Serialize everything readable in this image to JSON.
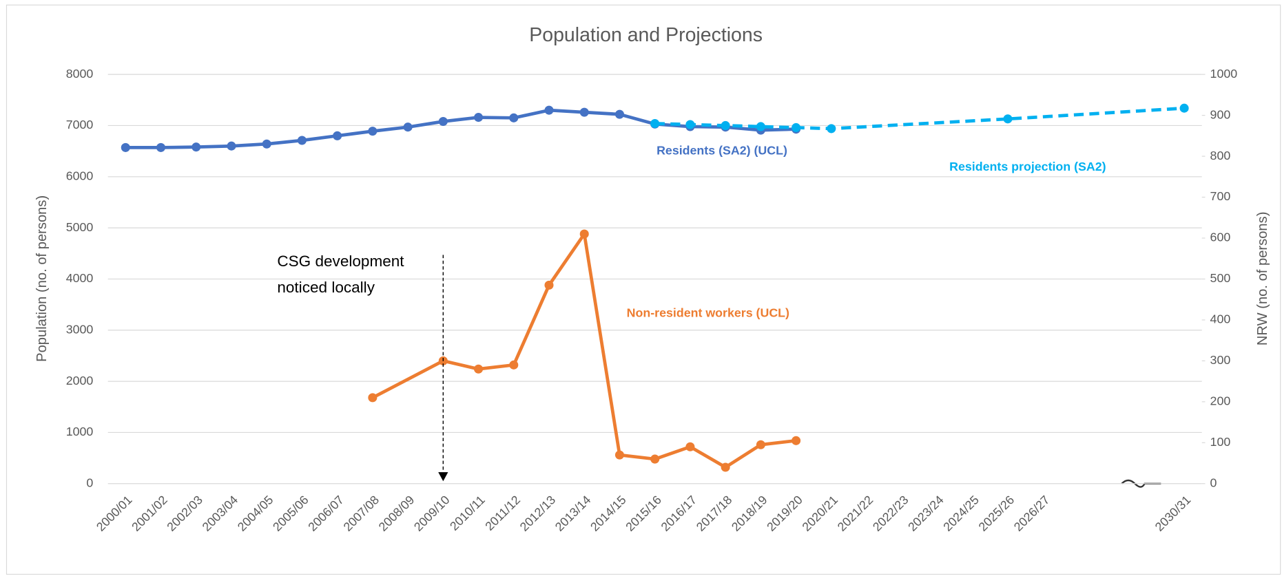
{
  "chart_data": {
    "type": "line",
    "title": "Population and Projections",
    "y_label": "Population (no. of persons)",
    "y2_label": "NRW (no. of persons)",
    "categories": [
      "2000/01",
      "2001/02",
      "2002/03",
      "2003/04",
      "2004/05",
      "2005/06",
      "2006/07",
      "2007/08",
      "2008/09",
      "2009/10",
      "2010/11",
      "2011/12",
      "2012/13",
      "2013/14",
      "2014/15",
      "2015/16",
      "2016/17",
      "2017/18",
      "2018/19",
      "2019/20",
      "2020/21",
      "2021/22",
      "2022/23",
      "2023/24",
      "2024/25",
      "2025/26",
      "2026/27",
      null,
      null,
      null,
      "2030/31"
    ],
    "ylim": [
      0,
      8000
    ],
    "yticks": [
      0,
      1000,
      2000,
      3000,
      4000,
      5000,
      6000,
      7000,
      8000
    ],
    "y2lim": [
      0,
      1000
    ],
    "y2ticks": [
      0,
      100,
      200,
      300,
      400,
      500,
      600,
      700,
      800,
      900,
      1000
    ],
    "grid": true,
    "series": [
      {
        "name": "Residents (SA2) (UCL)",
        "color": "#4472c4",
        "dashed": false,
        "connect_gaps": false,
        "values": [
          6570,
          6570,
          6580,
          6600,
          6640,
          6710,
          6800,
          6890,
          6970,
          7080,
          7160,
          7150,
          7300,
          7260,
          7220,
          7030,
          6980,
          6970,
          6910,
          6930,
          null,
          null,
          null,
          null,
          null,
          null,
          null,
          null,
          null,
          null,
          null
        ]
      },
      {
        "name": "Residents projection (SA2)",
        "color": "#00b0f0",
        "dashed": true,
        "connect_gaps": true,
        "values": [
          null,
          null,
          null,
          null,
          null,
          null,
          null,
          null,
          null,
          null,
          null,
          null,
          null,
          null,
          null,
          7040,
          7020,
          7000,
          6980,
          6960,
          6940,
          null,
          null,
          null,
          null,
          7130,
          null,
          null,
          null,
          null,
          7340
        ]
      },
      {
        "name": "Non-resident workers (UCL)",
        "color": "#ed7d31",
        "dashed": false,
        "connect_gaps": true,
        "axis": "y2",
        "values": [
          null,
          null,
          null,
          null,
          null,
          null,
          null,
          210,
          null,
          300,
          280,
          290,
          485,
          610,
          70,
          60,
          90,
          40,
          95,
          105,
          null,
          null,
          null,
          null,
          null,
          null,
          null,
          null,
          null,
          null,
          null
        ]
      }
    ],
    "annotation": [
      "CSG development",
      "noticed locally"
    ]
  }
}
